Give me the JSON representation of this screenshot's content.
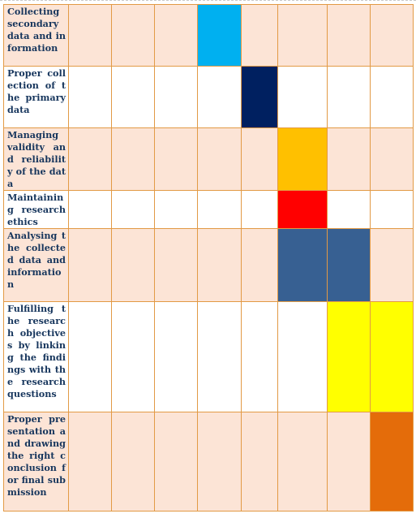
{
  "columns": 8,
  "tasks": [
    {
      "label": "Collecting secondary data and information",
      "shaded": true,
      "bar": {
        "col": 3,
        "color": "#00b0f0"
      }
    },
    {
      "label": "Proper collection of the primary data",
      "shaded": false,
      "bar": {
        "col": 4,
        "color": "#002060"
      }
    },
    {
      "label": "Managing validity and reliability of the data",
      "shaded": true,
      "bar": {
        "col": 5,
        "color": "#ffc000"
      }
    },
    {
      "label": "Maintaining research ethics",
      "shaded": false,
      "bar": {
        "col": 5,
        "color": "#ff0000"
      }
    },
    {
      "label": "Analysing the collected data and information",
      "shaded": true,
      "bar": {
        "col": 5,
        "span": 2,
        "color": "#376092"
      }
    },
    {
      "label": "Fulfilling the research objectives by linking the findings with the research questions",
      "shaded": false,
      "bar": {
        "col": 6,
        "span": 2,
        "color": "#ffff00"
      }
    },
    {
      "label": "Proper presentation and drawing the right conclusion for final submission",
      "shaded": true,
      "bar": {
        "col": 7,
        "color": "#e46c0a"
      }
    }
  ]
}
